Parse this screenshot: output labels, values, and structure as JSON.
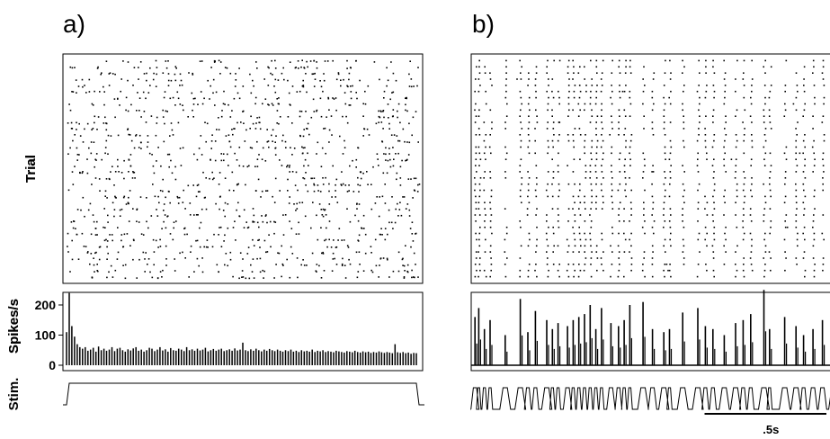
{
  "chart_data": [
    {
      "id": "a",
      "type": "raster-psth",
      "panel_label": "a)",
      "raster": {
        "ylabel": "Trial",
        "n_trials": 36,
        "spikes_per_trial_approx": 34,
        "pattern": "irregular"
      },
      "psth": {
        "type": "bar",
        "ylabel": "Spikes/s",
        "yticks": [
          0,
          100,
          200
        ],
        "ylim": [
          0,
          230
        ],
        "values": [
          110,
          240,
          130,
          95,
          70,
          60,
          55,
          60,
          48,
          52,
          58,
          45,
          62,
          50,
          55,
          48,
          52,
          60,
          47,
          55,
          58,
          50,
          45,
          53,
          49,
          56,
          60,
          48,
          52,
          45,
          50,
          58,
          55,
          47,
          52,
          60,
          49,
          53,
          45,
          57,
          50,
          48,
          55,
          52,
          47,
          60,
          50,
          53,
          48,
          55,
          49,
          52,
          58,
          46,
          50,
          54,
          48,
          52,
          55,
          47,
          50,
          53,
          48,
          56,
          49,
          52,
          75,
          50,
          47,
          53,
          48,
          55,
          50,
          46,
          52,
          48,
          54,
          50,
          47,
          52,
          48,
          45,
          50,
          47,
          52,
          45,
          48,
          44,
          50,
          46,
          48,
          45,
          52,
          44,
          48,
          46,
          50,
          44,
          47,
          45,
          43,
          48,
          46,
          44,
          42,
          47,
          45,
          43,
          48,
          44,
          42,
          46,
          43,
          45,
          41,
          44,
          42,
          46,
          43,
          41,
          44,
          42,
          40,
          70,
          43,
          41,
          44,
          40,
          42,
          38,
          41,
          40
        ]
      },
      "stim": {
        "ylabel": "Stim.",
        "waveform": "step",
        "onset_fraction": 0.01,
        "offset_fraction": 0.99
      }
    },
    {
      "id": "b",
      "type": "raster-psth",
      "panel_label": "b)",
      "raster": {
        "ylabel": "Trial",
        "n_trials": 36,
        "pattern": "stimulus-locked",
        "event_times": [
          0.01,
          0.02,
          0.035,
          0.05,
          0.09,
          0.13,
          0.15,
          0.17,
          0.2,
          0.215,
          0.23,
          0.255,
          0.27,
          0.285,
          0.3,
          0.315,
          0.33,
          0.345,
          0.37,
          0.39,
          0.405,
          0.42,
          0.455,
          0.48,
          0.51,
          0.525,
          0.56,
          0.6,
          0.62,
          0.64,
          0.67,
          0.7,
          0.72,
          0.74,
          0.775,
          0.79,
          0.83,
          0.86,
          0.88,
          0.905,
          0.93,
          0.96,
          0.985
        ]
      },
      "psth": {
        "type": "bar",
        "ylabel": "Spikes/s",
        "ylim": [
          0,
          230
        ],
        "peak_values": [
          160,
          190,
          120,
          150,
          100,
          220,
          110,
          180,
          150,
          120,
          140,
          130,
          150,
          160,
          170,
          200,
          120,
          190,
          140,
          130,
          150,
          200,
          210,
          120,
          110,
          120,
          175,
          190,
          130,
          120,
          100,
          140,
          150,
          170,
          250,
          120,
          160,
          130,
          100,
          120,
          150,
          140,
          130
        ]
      },
      "stim": {
        "ylabel": "Stim.",
        "waveform": "burst-train"
      },
      "scale_bar": {
        "label": ".5s",
        "duration_s": 0.5
      }
    }
  ]
}
